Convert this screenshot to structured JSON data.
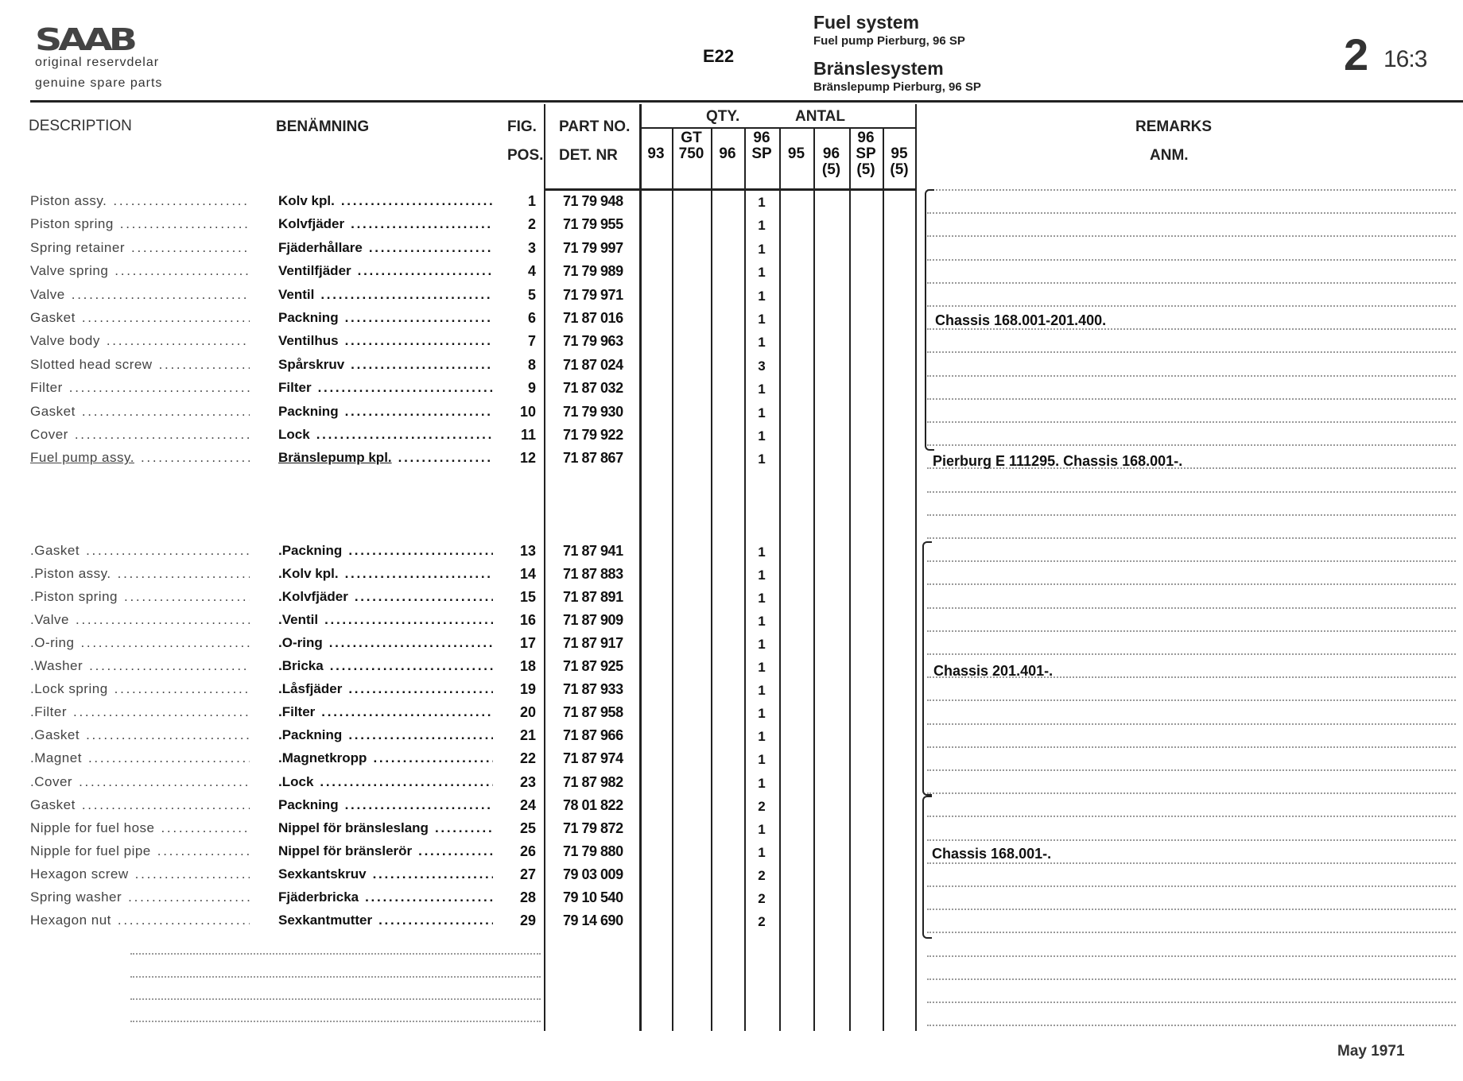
{
  "header": {
    "logo": "SAAB",
    "tagline_sv": "original reservdelar",
    "tagline_en": "genuine spare parts",
    "code": "E22",
    "title_en": "Fuel system",
    "subtitle_en": "Fuel pump Pierburg, 96 SP",
    "title_sv": "Bränslesystem",
    "subtitle_sv": "Bränslepump Pierburg, 96 SP",
    "page_group": "2",
    "page_number": "16:3"
  },
  "columns": {
    "description": "DESCRIPTION",
    "benamning": "BENÄMNING",
    "fig": "FIG.",
    "pos": "POS.",
    "part_no": "PART NO.",
    "det_nr": "DET. NR",
    "qty": "QTY.",
    "antal": "ANTAL",
    "remarks": "REMARKS",
    "anm": "ANM.",
    "qty_models": [
      [
        "",
        "93",
        ""
      ],
      [
        "GT",
        "750",
        ""
      ],
      [
        "",
        "96",
        ""
      ],
      [
        "96",
        "SP",
        ""
      ],
      [
        "",
        "95",
        ""
      ],
      [
        "",
        "96",
        "(5)"
      ],
      [
        "96",
        "SP",
        "(5)"
      ],
      [
        "",
        "95",
        "(5)"
      ]
    ]
  },
  "rows": [
    {
      "desc": "Piston assy.",
      "sv": "Kolv kpl.",
      "pos": "1",
      "part": "71 79 948",
      "qty": [
        "",
        "",
        "",
        "1",
        "",
        "",
        "",
        ""
      ]
    },
    {
      "desc": "Piston spring",
      "sv": "Kolvfjäder",
      "pos": "2",
      "part": "71 79 955",
      "qty": [
        "",
        "",
        "",
        "1",
        "",
        "",
        "",
        ""
      ]
    },
    {
      "desc": "Spring retainer",
      "sv": "Fjäderhållare",
      "pos": "3",
      "part": "71 79 997",
      "qty": [
        "",
        "",
        "",
        "1",
        "",
        "",
        "",
        ""
      ]
    },
    {
      "desc": "Valve spring",
      "sv": "Ventilfjäder",
      "pos": "4",
      "part": "71 79 989",
      "qty": [
        "",
        "",
        "",
        "1",
        "",
        "",
        "",
        ""
      ]
    },
    {
      "desc": "Valve",
      "sv": "Ventil",
      "pos": "5",
      "part": "71 79 971",
      "qty": [
        "",
        "",
        "",
        "1",
        "",
        "",
        "",
        ""
      ]
    },
    {
      "desc": "Gasket",
      "sv": "Packning",
      "pos": "6",
      "part": "71 87 016",
      "qty": [
        "",
        "",
        "",
        "1",
        "",
        "",
        "",
        ""
      ]
    },
    {
      "desc": "Valve body",
      "sv": "Ventilhus",
      "pos": "7",
      "part": "71 79 963",
      "qty": [
        "",
        "",
        "",
        "1",
        "",
        "",
        "",
        ""
      ]
    },
    {
      "desc": "Slotted head screw",
      "sv": "Spårskruv",
      "pos": "8",
      "part": "71 87 024",
      "qty": [
        "",
        "",
        "",
        "3",
        "",
        "",
        "",
        ""
      ]
    },
    {
      "desc": "Filter",
      "sv": "Filter",
      "pos": "9",
      "part": "71 87 032",
      "qty": [
        "",
        "",
        "",
        "1",
        "",
        "",
        "",
        ""
      ]
    },
    {
      "desc": "Gasket",
      "sv": "Packning",
      "pos": "10",
      "part": "71 79 930",
      "qty": [
        "",
        "",
        "",
        "1",
        "",
        "",
        "",
        ""
      ]
    },
    {
      "desc": "Cover",
      "sv": "Lock",
      "pos": "11",
      "part": "71 79 922",
      "qty": [
        "",
        "",
        "",
        "1",
        "",
        "",
        "",
        ""
      ]
    },
    {
      "desc": "Fuel pump assy.",
      "sv": "Bränslepump kpl.",
      "pos": "12",
      "part": "71 87 867",
      "qty": [
        "",
        "",
        "",
        "1",
        "",
        "",
        "",
        ""
      ],
      "underline": true
    },
    {
      "desc": ".Gasket",
      "sv": ".Packning",
      "pos": "13",
      "part": "71 87 941",
      "qty": [
        "",
        "",
        "",
        "1",
        "",
        "",
        "",
        ""
      ]
    },
    {
      "desc": ".Piston assy.",
      "sv": ".Kolv kpl.",
      "pos": "14",
      "part": "71 87 883",
      "qty": [
        "",
        "",
        "",
        "1",
        "",
        "",
        "",
        ""
      ]
    },
    {
      "desc": ".Piston spring",
      "sv": ".Kolvfjäder",
      "pos": "15",
      "part": "71 87 891",
      "qty": [
        "",
        "",
        "",
        "1",
        "",
        "",
        "",
        ""
      ]
    },
    {
      "desc": ".Valve",
      "sv": ".Ventil",
      "pos": "16",
      "part": "71 87 909",
      "qty": [
        "",
        "",
        "",
        "1",
        "",
        "",
        "",
        ""
      ]
    },
    {
      "desc": ".O-ring",
      "sv": ".O-ring",
      "pos": "17",
      "part": "71 87 917",
      "qty": [
        "",
        "",
        "",
        "1",
        "",
        "",
        "",
        ""
      ]
    },
    {
      "desc": ".Washer",
      "sv": ".Bricka",
      "pos": "18",
      "part": "71 87 925",
      "qty": [
        "",
        "",
        "",
        "1",
        "",
        "",
        "",
        ""
      ]
    },
    {
      "desc": ".Lock spring",
      "sv": ".Låsfjäder",
      "pos": "19",
      "part": "71 87 933",
      "qty": [
        "",
        "",
        "",
        "1",
        "",
        "",
        "",
        ""
      ]
    },
    {
      "desc": ".Filter",
      "sv": ".Filter",
      "pos": "20",
      "part": "71 87 958",
      "qty": [
        "",
        "",
        "",
        "1",
        "",
        "",
        "",
        ""
      ]
    },
    {
      "desc": ".Gasket",
      "sv": ".Packning",
      "pos": "21",
      "part": "71 87 966",
      "qty": [
        "",
        "",
        "",
        "1",
        "",
        "",
        "",
        ""
      ]
    },
    {
      "desc": ".Magnet",
      "sv": ".Magnetkropp",
      "pos": "22",
      "part": "71 87 974",
      "qty": [
        "",
        "",
        "",
        "1",
        "",
        "",
        "",
        ""
      ]
    },
    {
      "desc": ".Cover",
      "sv": ".Lock",
      "pos": "23",
      "part": "71 87 982",
      "qty": [
        "",
        "",
        "",
        "1",
        "",
        "",
        "",
        ""
      ]
    },
    {
      "desc": "Gasket",
      "sv": "Packning",
      "pos": "24",
      "part": "78 01 822",
      "qty": [
        "",
        "",
        "",
        "2",
        "",
        "",
        "",
        ""
      ]
    },
    {
      "desc": "Nipple for fuel hose",
      "sv": "Nippel för bränsleslang",
      "pos": "25",
      "part": "71 79 872",
      "qty": [
        "",
        "",
        "",
        "1",
        "",
        "",
        "",
        ""
      ]
    },
    {
      "desc": "Nipple for fuel pipe",
      "sv": "Nippel för bränslerör",
      "pos": "26",
      "part": "71 79 880",
      "qty": [
        "",
        "",
        "",
        "1",
        "",
        "",
        "",
        ""
      ]
    },
    {
      "desc": "Hexagon screw",
      "sv": "Sexkantskruv",
      "pos": "27",
      "part": "79 03 009",
      "qty": [
        "",
        "",
        "",
        "2",
        "",
        "",
        "",
        ""
      ]
    },
    {
      "desc": "Spring washer",
      "sv": "Fjäderbricka",
      "pos": "28",
      "part": "79 10 540",
      "qty": [
        "",
        "",
        "",
        "2",
        "",
        "",
        "",
        ""
      ]
    },
    {
      "desc": "Hexagon nut",
      "sv": "Sexkantmutter",
      "pos": "29",
      "part": "79 14 690",
      "qty": [
        "",
        "",
        "",
        "2",
        "",
        "",
        "",
        ""
      ]
    }
  ],
  "remarks": [
    {
      "text": "Chassis 168.001-201.400.",
      "rows": "1-11"
    },
    {
      "text": "Pierburg E 111295. Chassis 168.001-.",
      "rows": "12"
    },
    {
      "text": "Chassis 201.401-.",
      "rows": "13-23"
    },
    {
      "text": "Chassis 168.001-.",
      "rows": "24-29"
    }
  ],
  "footer": {
    "date": "May 1971"
  }
}
